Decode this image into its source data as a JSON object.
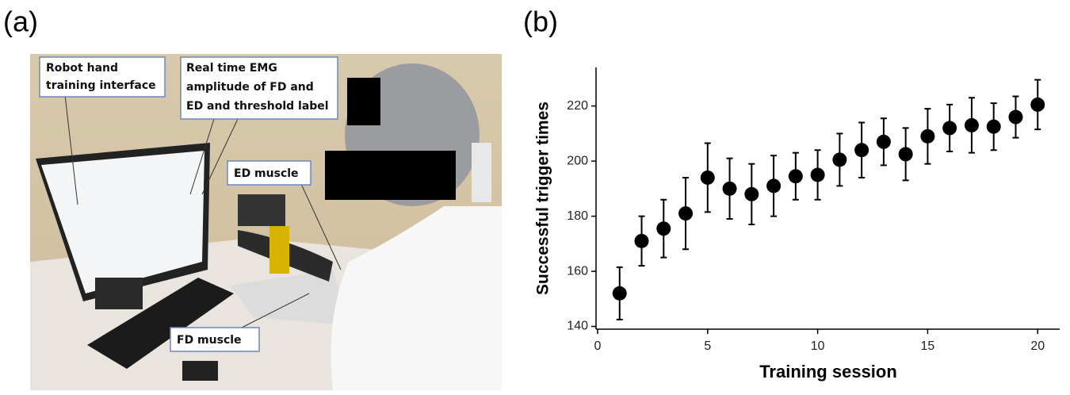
{
  "panels": {
    "a": {
      "label": "(a)",
      "annotations": {
        "robot_hand": [
          "Robot hand",
          "training interface"
        ],
        "emg": [
          "Real time EMG",
          "amplitude of FD and",
          "ED and threshold label"
        ],
        "ed_muscle": "ED muscle",
        "fd_muscle": "FD muscle"
      }
    },
    "b": {
      "label": "(b)"
    }
  },
  "chart_data": {
    "type": "errorbar",
    "x_label": "Training session",
    "y_label": "Successful trigger times",
    "x": [
      1,
      2,
      3,
      4,
      5,
      6,
      7,
      8,
      9,
      10,
      11,
      12,
      13,
      14,
      15,
      16,
      17,
      18,
      19,
      20
    ],
    "values": [
      152,
      171,
      175.5,
      181,
      194,
      190,
      188,
      191,
      194.5,
      195,
      200.5,
      204,
      207,
      202.5,
      209,
      212,
      213,
      212.5,
      216,
      220.5
    ],
    "errors": [
      9.5,
      9,
      10.5,
      13,
      12.5,
      11,
      11,
      11,
      8.5,
      9,
      9.5,
      10,
      8.5,
      9.5,
      10,
      8.5,
      10,
      8.5,
      7.5,
      9
    ],
    "color": "#000000",
    "xlim": [
      0,
      21
    ],
    "xticks": [
      0,
      5,
      10,
      15,
      20
    ],
    "ylim": [
      139,
      234
    ],
    "yticks": [
      140,
      160,
      180,
      200,
      220
    ],
    "grid": false
  }
}
